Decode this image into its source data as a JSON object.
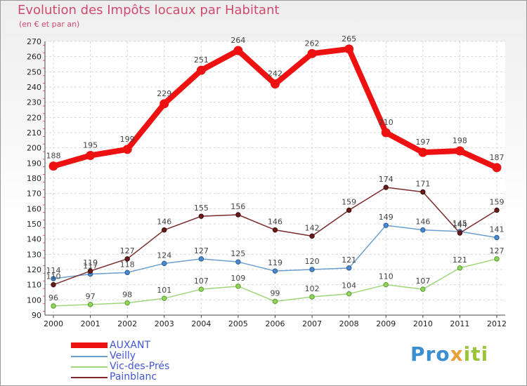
{
  "header": {
    "title": "Evolution des Impôts locaux par Habitant",
    "subtitle": "(en € et par an)"
  },
  "brand": {
    "part1": "Pro",
    "part2": "x",
    "part3": "iti"
  },
  "chart_data": {
    "type": "line",
    "title": "Evolution des Impôts locaux par Habitant",
    "subtitle": "(en € et par an)",
    "xlabel": "",
    "ylabel": "",
    "x": [
      "2000",
      "2001",
      "2002",
      "2003",
      "2004",
      "2005",
      "2006",
      "2007",
      "2008",
      "2009",
      "2010",
      "2011",
      "2012"
    ],
    "ylim": [
      90,
      270
    ],
    "yticks": [
      90,
      100,
      110,
      120,
      130,
      140,
      150,
      160,
      170,
      180,
      190,
      200,
      210,
      220,
      230,
      240,
      250,
      260,
      270
    ],
    "grid": true,
    "legend_position": "bottom-left",
    "series": [
      {
        "name": "AUXANT",
        "color": "#ee1111",
        "values": [
          188,
          195,
          199,
          229,
          251,
          264,
          242,
          262,
          265,
          210,
          197,
          198,
          187
        ]
      },
      {
        "name": "Veilly",
        "color": "#6a9fd0",
        "values": [
          114,
          117,
          118,
          124,
          127,
          125,
          119,
          120,
          121,
          149,
          146,
          145,
          141
        ]
      },
      {
        "name": "Vic-des-Prés",
        "color": "#9fd67a",
        "values": [
          96,
          97,
          98,
          101,
          107,
          109,
          99,
          102,
          104,
          110,
          107,
          121,
          127
        ]
      },
      {
        "name": "Painblanc",
        "color": "#7a2a2a",
        "values": [
          110,
          119,
          127,
          146,
          155,
          156,
          146,
          142,
          159,
          174,
          171,
          144,
          159
        ]
      }
    ]
  }
}
